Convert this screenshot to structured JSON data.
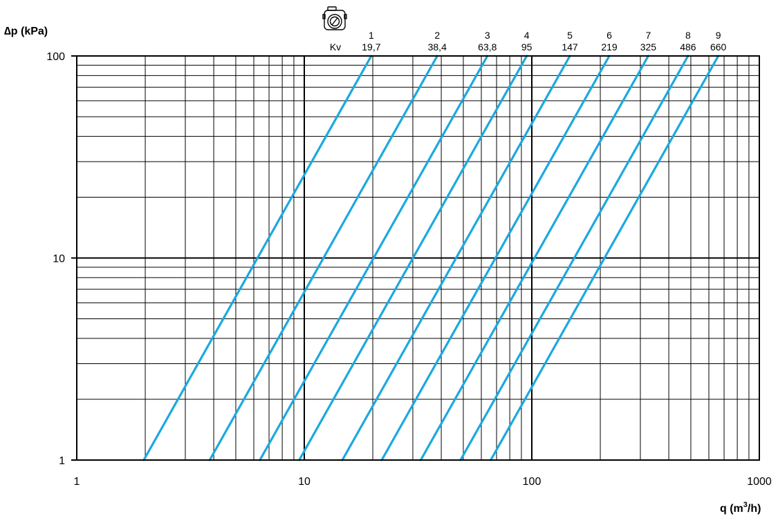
{
  "chart_data": {
    "type": "line",
    "title": "",
    "ylabel": "∆p (kPa)",
    "xlabel": "q (m",
    "xlabel_sup": "3",
    "xlabel_tail": "/h)",
    "xscale": "log",
    "yscale": "log",
    "xlim": [
      1,
      1000
    ],
    "ylim": [
      1,
      100
    ],
    "x_ticks": [
      "1",
      "10",
      "100",
      "1000"
    ],
    "y_ticks": [
      "1",
      "10",
      "100"
    ],
    "grid": true,
    "kv_header": "Kv",
    "kv_icon": "valve-actuator-icon",
    "line_color": "#1ba8e0",
    "series": [
      {
        "name": "1",
        "kv": "19,7",
        "kv_value": 19.7
      },
      {
        "name": "2",
        "kv": "38,4",
        "kv_value": 38.4
      },
      {
        "name": "3",
        "kv": "63,8",
        "kv_value": 63.8
      },
      {
        "name": "4",
        "kv": "95",
        "kv_value": 95
      },
      {
        "name": "5",
        "kv": "147",
        "kv_value": 147
      },
      {
        "name": "6",
        "kv": "219",
        "kv_value": 219
      },
      {
        "name": "7",
        "kv": "325",
        "kv_value": 325
      },
      {
        "name": "8",
        "kv": "486",
        "kv_value": 486
      },
      {
        "name": "9",
        "kv": "660",
        "kv_value": 660
      }
    ]
  }
}
